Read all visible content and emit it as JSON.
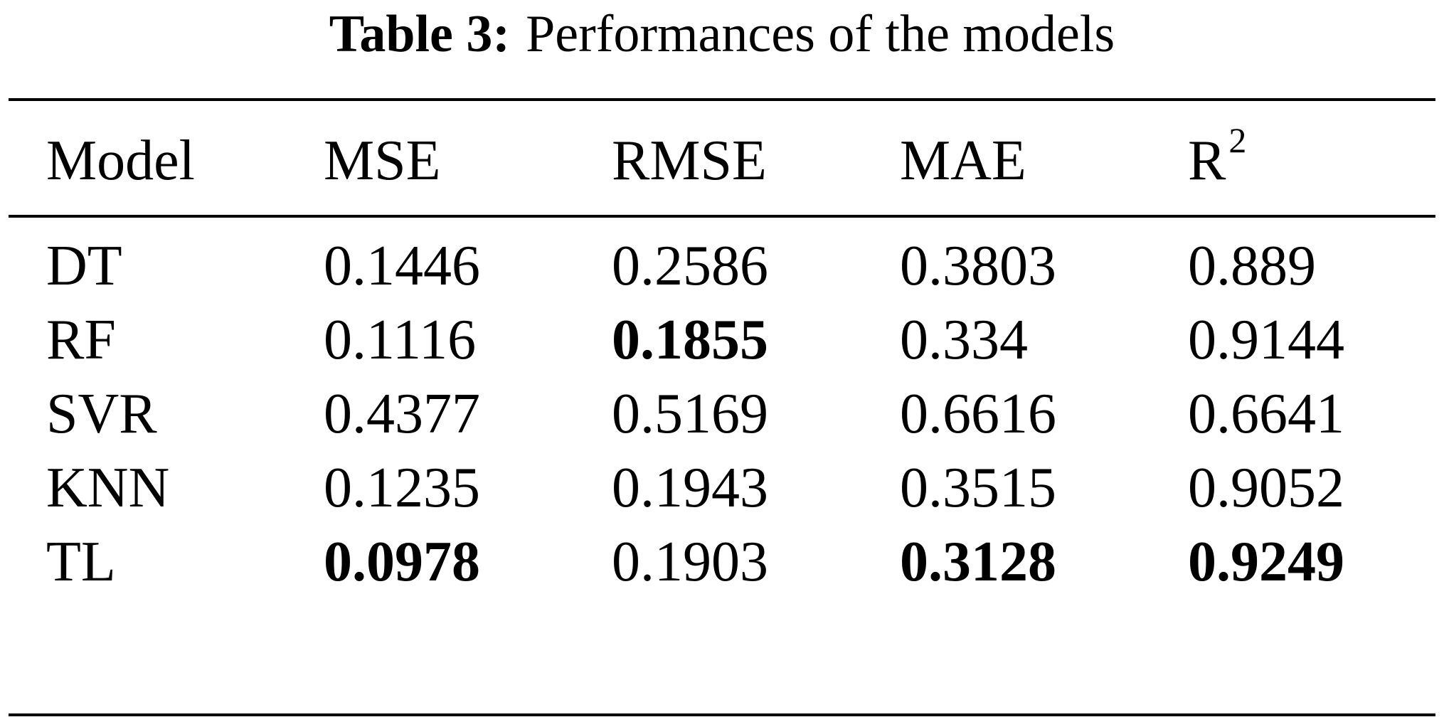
{
  "caption": {
    "label": "Table 3:",
    "text": "Performances of the models"
  },
  "table": {
    "headers": [
      "Model",
      "MSE",
      "RMSE",
      "MAE",
      "R"
    ],
    "r2_superscript": "2",
    "rows": [
      {
        "cells": [
          "DT",
          "0.1446",
          "0.2586",
          "0.3803",
          "0.889"
        ],
        "bold": [
          false,
          false,
          false,
          false,
          false
        ]
      },
      {
        "cells": [
          "RF",
          "0.1116",
          "0.1855",
          "0.334",
          "0.9144"
        ],
        "bold": [
          false,
          false,
          true,
          false,
          false
        ]
      },
      {
        "cells": [
          "SVR",
          "0.4377",
          "0.5169",
          "0.6616",
          "0.6641"
        ],
        "bold": [
          false,
          false,
          false,
          false,
          false
        ]
      },
      {
        "cells": [
          "KNN",
          "0.1235",
          "0.1943",
          "0.3515",
          "0.9052"
        ],
        "bold": [
          false,
          false,
          false,
          false,
          false
        ]
      },
      {
        "cells": [
          "TL",
          "0.0978",
          "0.1903",
          "0.3128",
          "0.9249"
        ],
        "bold": [
          false,
          true,
          false,
          true,
          true
        ]
      }
    ]
  }
}
